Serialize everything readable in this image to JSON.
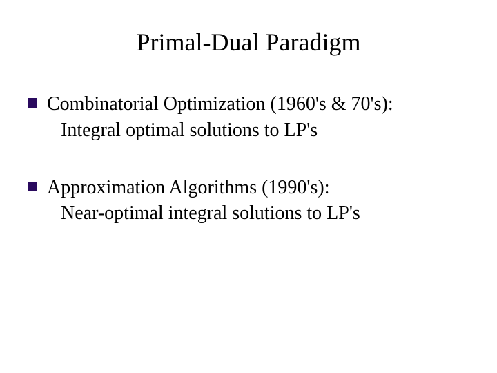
{
  "slide": {
    "title": "Primal-Dual Paradigm",
    "bullets": [
      {
        "main": "Combinatorial Optimization (1960's  &  70's):",
        "sub": "Integral optimal solutions to LP's"
      },
      {
        "main": "Approximation Algorithms (1990's):",
        "sub": "Near-optimal integral solutions to LP's"
      }
    ],
    "colors": {
      "background": "#ffffff",
      "text": "#000000",
      "bullet_marker": "#2a0a5e"
    },
    "typography": {
      "font_family": "Times New Roman",
      "title_fontsize": 36,
      "body_fontsize": 28
    }
  }
}
